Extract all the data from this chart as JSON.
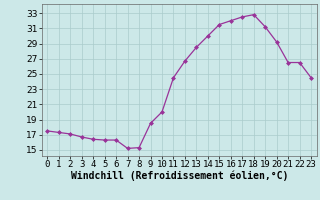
{
  "x": [
    0,
    1,
    2,
    3,
    4,
    5,
    6,
    7,
    8,
    9,
    10,
    11,
    12,
    13,
    14,
    15,
    16,
    17,
    18,
    19,
    20,
    21,
    22,
    23
  ],
  "y": [
    17.5,
    17.3,
    17.1,
    16.7,
    16.4,
    16.3,
    16.3,
    15.2,
    15.3,
    18.5,
    20.0,
    24.5,
    26.7,
    28.5,
    30.0,
    31.5,
    32.0,
    32.5,
    32.8,
    31.2,
    29.2,
    26.5,
    26.5,
    24.5
  ],
  "line_color": "#993399",
  "marker": "D",
  "marker_size": 2,
  "bg_color": "#cce8e8",
  "grid_color": "#aacccc",
  "xlabel": "Windchill (Refroidissement éolien,°C)",
  "xlabel_fontsize": 7,
  "ylabel_ticks": [
    15,
    17,
    19,
    21,
    23,
    25,
    27,
    29,
    31,
    33
  ],
  "ylim": [
    14.2,
    34.2
  ],
  "xlim": [
    -0.5,
    23.5
  ],
  "tick_fontsize": 6.5,
  "xlabel_fontweight": "bold"
}
